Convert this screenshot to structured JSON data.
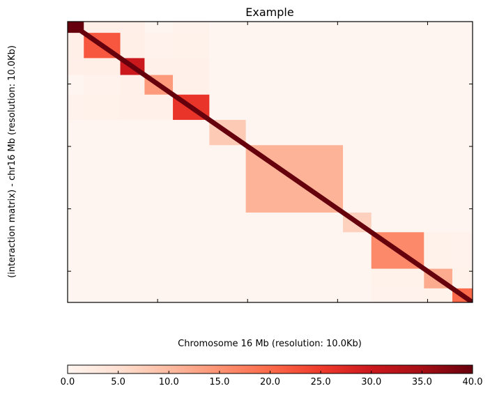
{
  "chart_data": {
    "type": "heatmap",
    "title": "Example",
    "xlabel": "Chromosome 16 Mb (resolution: 10.0Kb)",
    "ylabel": "(interaction matrix) - chr16 Mb (resolution: 10.0Kb)",
    "x_ticks_shown": 4,
    "y_ticks_shown": 4,
    "tick_labels_visible": false,
    "diagonal": "main diagonal from top-left to bottom-right",
    "domains": [
      {
        "start": 0.0,
        "end": 0.04,
        "level": 40
      },
      {
        "start": 0.04,
        "end": 0.13,
        "level": 22
      },
      {
        "start": 0.13,
        "end": 0.19,
        "level": 30
      },
      {
        "start": 0.19,
        "end": 0.26,
        "level": 14
      },
      {
        "start": 0.26,
        "end": 0.35,
        "level": 26
      },
      {
        "start": 0.35,
        "end": 0.44,
        "level": 8
      },
      {
        "start": 0.44,
        "end": 0.68,
        "level": 11
      },
      {
        "start": 0.68,
        "end": 0.75,
        "level": 7
      },
      {
        "start": 0.75,
        "end": 0.88,
        "level": 16
      },
      {
        "start": 0.88,
        "end": 0.95,
        "level": 12
      },
      {
        "start": 0.95,
        "end": 1.0,
        "level": 20
      }
    ],
    "colorbar": {
      "min": 0.0,
      "max": 40.0,
      "ticks": [
        "0.0",
        "5.0",
        "10.0",
        "15.0",
        "20.0",
        "25.0",
        "30.0",
        "35.0",
        "40.0"
      ],
      "colormap": "Reds",
      "colors": [
        "#fff5f0",
        "#fee0d2",
        "#fcbba1",
        "#fc9272",
        "#fb6a4a",
        "#ef3b2c",
        "#cb181d",
        "#a50f15",
        "#67000d"
      ]
    }
  }
}
